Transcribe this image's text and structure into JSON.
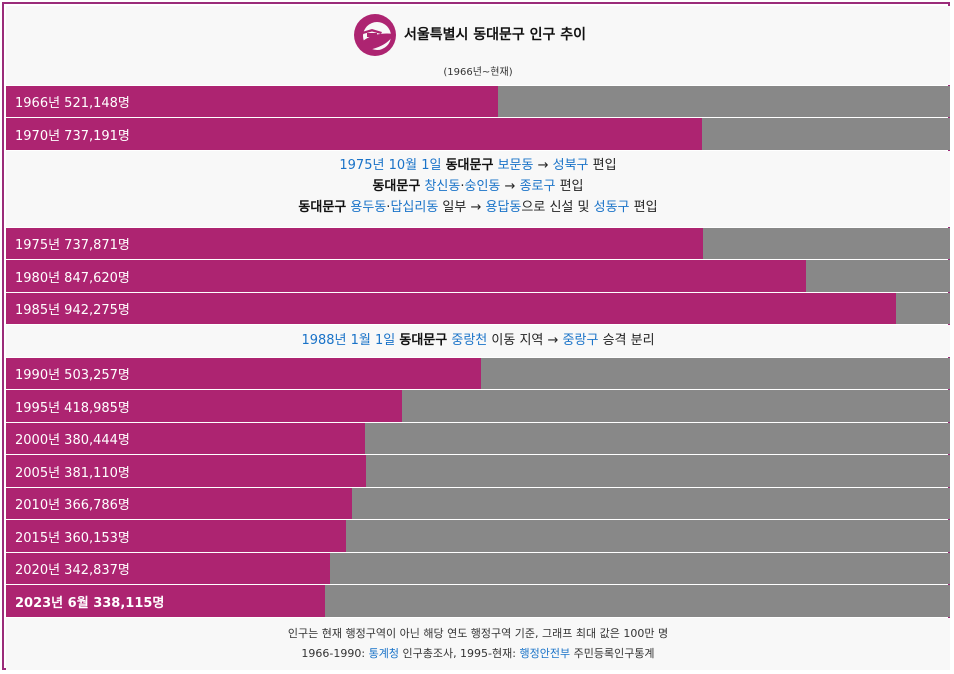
{
  "header": {
    "title": "서울특별시 동대문구 인구 추이",
    "subtitle": "(1966년~현재)",
    "logo_icon": "seoul-symbol-icon",
    "colors": {
      "logo": "#ad2471"
    }
  },
  "chart_data": {
    "type": "bar",
    "orientation": "horizontal",
    "max_value": 1000000,
    "categories": [
      "1966년",
      "1970년",
      "1975년",
      "1980년",
      "1985년",
      "1990년",
      "1995년",
      "2000년",
      "2005년",
      "2010년",
      "2015년",
      "2020년",
      "2023년 6월"
    ],
    "values": [
      521148,
      737191,
      737871,
      847620,
      942275,
      503257,
      418985,
      380444,
      381110,
      366786,
      360153,
      342837,
      338115
    ],
    "labels": [
      "1966년 521,148명",
      "1970년 737,191명",
      "1975년 737,871명",
      "1980년 847,620명",
      "1985년 942,275명",
      "1990년 503,257명",
      "1995년 418,985명",
      "2000년 380,444명",
      "2005년 381,110명",
      "2010년 366,786명",
      "2015년 360,153명",
      "2020년 342,837명",
      "2023년 6월 338,115명"
    ],
    "colors": {
      "fill": "#ad2471",
      "track": "#888888"
    },
    "grid": false,
    "legend": "none"
  },
  "notes": {
    "n1975": {
      "line1": [
        "1975년 10월 1일",
        "동대문구",
        "보문동",
        "→",
        "성북구",
        "편입"
      ],
      "line2": [
        "동대문구",
        "창신동",
        "·",
        "숭인동",
        "→",
        "종로구",
        "편입"
      ],
      "line3": [
        "동대문구",
        "용두동",
        "·",
        "답십리동",
        "일부 →",
        "용답동",
        "으로 신설 및",
        "성동구",
        "편입"
      ]
    },
    "n1988": {
      "line1": [
        "1988년 1월 1일",
        "동대문구",
        "중랑천",
        "이동 지역 →",
        "중랑구",
        "승격 분리"
      ]
    }
  },
  "footer": {
    "line1": "인구는 현재 행정구역이 아닌 해당 연도 행정구역 기준, 그래프 최대 값은 100만 명",
    "line2": [
      "1966-1990:",
      "통계청",
      "인구총조사, 1995-현재:",
      "행정안전부",
      "주민등록인구통계"
    ]
  }
}
